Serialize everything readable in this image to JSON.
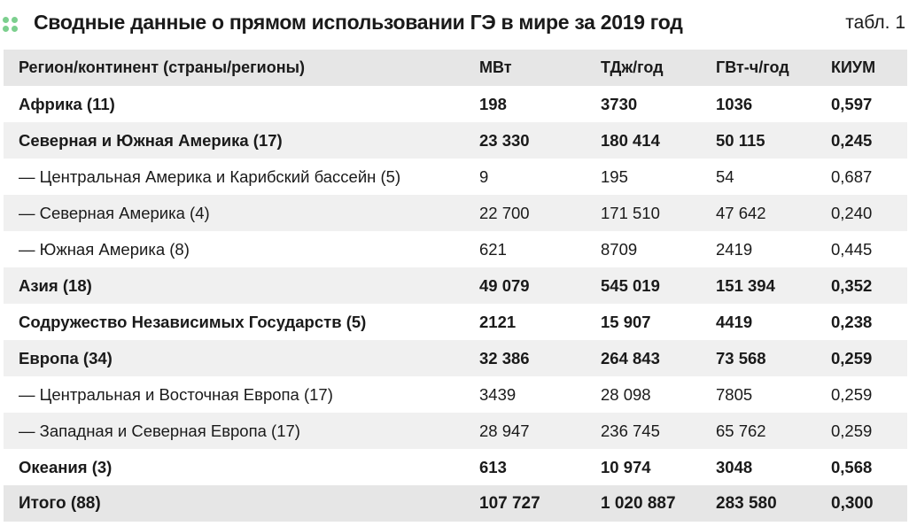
{
  "header": {
    "title": "Сводные данные о прямом использовании ГЭ в мире за 2019 год",
    "table_label": "табл. 1"
  },
  "colors": {
    "accent_dots": "#7ccf8e",
    "header_bg": "#e6e6e6",
    "stripe_bg": "#f0f0f0"
  },
  "table": {
    "columns": [
      "Регион/континент (страны/регионы)",
      "МВт",
      "ТДж/год",
      "ГВт-ч/год",
      "КИУМ"
    ],
    "rows": [
      {
        "cells": [
          "Африка (11)",
          "198",
          "3730",
          "1036",
          "0,597"
        ],
        "bold": true
      },
      {
        "cells": [
          "Северная и Южная Америка (17)",
          "23 330",
          "180 414",
          "50 115",
          "0,245"
        ],
        "bold": true
      },
      {
        "cells": [
          "— Центральная Америка и Карибский бассейн (5)",
          "9",
          "195",
          "54",
          "0,687"
        ],
        "bold": false
      },
      {
        "cells": [
          "— Северная Америка (4)",
          "22 700",
          "171 510",
          "47 642",
          "0,240"
        ],
        "bold": false
      },
      {
        "cells": [
          "— Южная Америка (8)",
          "621",
          "8709",
          "2419",
          "0,445"
        ],
        "bold": false
      },
      {
        "cells": [
          "Азия (18)",
          "49 079",
          "545 019",
          "151 394",
          "0,352"
        ],
        "bold": true
      },
      {
        "cells": [
          "Содружество Независимых Государств (5)",
          "2121",
          "15 907",
          "4419",
          "0,238"
        ],
        "bold": true
      },
      {
        "cells": [
          "Европа (34)",
          "32 386",
          "264 843",
          "73 568",
          "0,259"
        ],
        "bold": true
      },
      {
        "cells": [
          "— Центральная и Восточная Европа (17)",
          "3439",
          "28 098",
          "7805",
          "0,259"
        ],
        "bold": false
      },
      {
        "cells": [
          "— Западная и Северная Европа (17)",
          "28 947",
          "236 745",
          "65 762",
          "0,259"
        ],
        "bold": false
      },
      {
        "cells": [
          "Океания (3)",
          "613",
          "10 974",
          "3048",
          "0,568"
        ],
        "bold": true
      }
    ],
    "total": [
      "Итого (88)",
      "107 727",
      "1 020 887",
      "283 580",
      "0,300"
    ]
  }
}
